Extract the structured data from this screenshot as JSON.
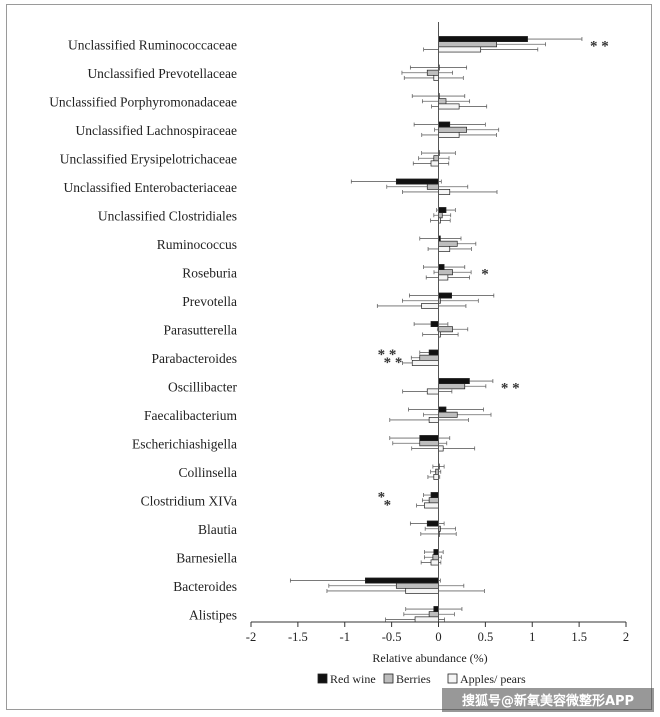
{
  "chart_data": {
    "type": "bar",
    "orientation": "horizontal",
    "xlabel": "Relative abundance (%)",
    "xlim": [
      -2,
      2
    ],
    "xticks": [
      "-2",
      "-1.5",
      "-1",
      "-0.5",
      "0",
      "0.5",
      "1",
      "1.5",
      "2"
    ],
    "categories": [
      "Unclassified Ruminococcaceae",
      "Unclassified Prevotellaceae",
      "Unclassified Porphyromonadaceae",
      "Unclassified Lachnospiraceae",
      "Unclassified Erysipelotrichaceae",
      "Unclassified Enterobacteriaceae",
      "Unclassified Clostridiales",
      "Ruminococcus",
      "Roseburia",
      "Prevotella",
      "Parasutterella",
      "Parabacteroides",
      "Oscillibacter",
      "Faecalibacterium",
      "Escherichiashigella",
      "Collinsella",
      "Clostridium XIVa",
      "Blautia",
      "Barnesiella",
      "Bacteroides",
      "Alistipes"
    ],
    "series": [
      {
        "name": "Red wine",
        "color": "#111111",
        "values": [
          0.95,
          0.0,
          0.0,
          0.12,
          0.0,
          -0.45,
          0.08,
          0.02,
          0.06,
          0.14,
          -0.08,
          -0.1,
          0.33,
          0.08,
          -0.2,
          0.0,
          -0.08,
          -0.12,
          -0.05,
          -0.78,
          -0.05
        ],
        "errors": [
          0.58,
          0.3,
          0.28,
          0.38,
          0.18,
          0.48,
          0.1,
          0.22,
          0.22,
          0.45,
          0.18,
          0.1,
          0.25,
          0.4,
          0.32,
          0.06,
          0.08,
          0.18,
          0.1,
          0.8,
          0.3
        ]
      },
      {
        "name": "Berries",
        "color": "#bdbdbd",
        "values": [
          0.62,
          -0.12,
          0.08,
          0.3,
          -0.05,
          -0.12,
          0.04,
          0.2,
          0.15,
          0.02,
          0.15,
          -0.2,
          0.28,
          0.2,
          -0.2,
          -0.03,
          -0.1,
          0.02,
          -0.06,
          -0.45,
          -0.1
        ]
      },
      {
        "name": "Apples/ pears",
        "color": "#f5f5f5",
        "values": [
          0.45,
          -0.05,
          0.22,
          0.22,
          -0.08,
          0.12,
          0.02,
          0.12,
          0.1,
          -0.18,
          0.02,
          -0.28,
          -0.12,
          -0.1,
          0.05,
          -0.05,
          -0.15,
          0.0,
          -0.08,
          -0.35,
          -0.25
        ]
      }
    ],
    "significance": [
      {
        "category": "Unclassified Ruminococcaceae",
        "mark": "* *",
        "side": "right"
      },
      {
        "category": "Roseburia",
        "mark": "*",
        "side": "right"
      },
      {
        "category": "Parabacteroides",
        "mark": "* *",
        "side": "left"
      },
      {
        "category": "Parabacteroides",
        "mark": "* *",
        "side": "left"
      },
      {
        "category": "Oscillibacter",
        "mark": "* *",
        "side": "right"
      },
      {
        "category": "Clostridium XIVa",
        "mark": "*",
        "side": "left"
      },
      {
        "category": "Clostridium XIVa",
        "mark": "*",
        "side": "left"
      }
    ],
    "legend_position": "bottom"
  },
  "watermark": "搜狐号@新氧美容微整形APP"
}
